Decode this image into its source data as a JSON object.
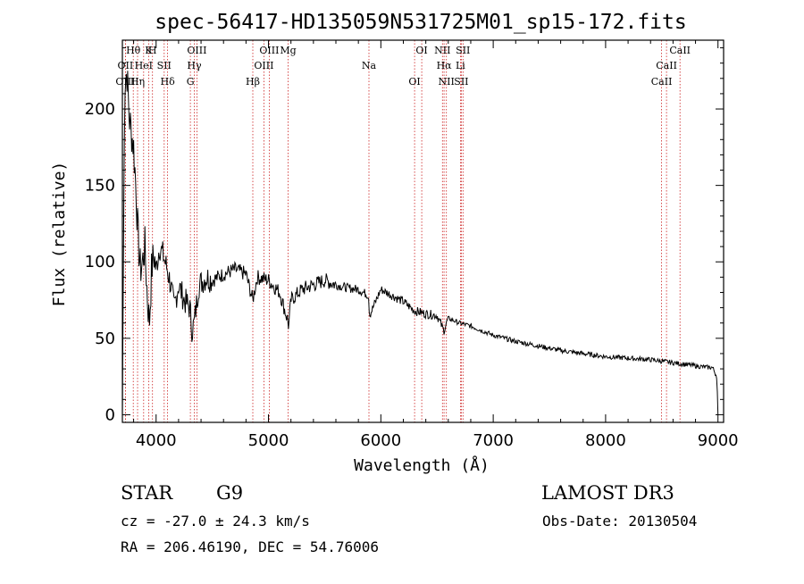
{
  "chart_data": {
    "type": "line",
    "title": "spec-56417-HD135059N531725M01_sp15-172.fits",
    "xlabel": "Wavelength (Å)",
    "ylabel": "Flux (relative)",
    "xlim": [
      3700,
      9050
    ],
    "ylim": [
      -5,
      245
    ],
    "xticks": [
      4000,
      5000,
      6000,
      7000,
      8000,
      9000
    ],
    "yticks": [
      0,
      50,
      100,
      150,
      200
    ],
    "series": [
      {
        "name": "flux",
        "x": [
          3700,
          3720,
          3740,
          3760,
          3780,
          3800,
          3820,
          3840,
          3860,
          3880,
          3900,
          3920,
          3940,
          3960,
          3980,
          4000,
          4030,
          4060,
          4100,
          4130,
          4160,
          4200,
          4250,
          4300,
          4320,
          4340,
          4380,
          4450,
          4500,
          4600,
          4700,
          4800,
          4860,
          4900,
          5000,
          5100,
          5170,
          5180,
          5200,
          5300,
          5400,
          5500,
          5600,
          5700,
          5800,
          5890,
          5900,
          6000,
          6100,
          6200,
          6300,
          6400,
          6500,
          6560,
          6600,
          6700,
          6800,
          7000,
          7200,
          7400,
          7600,
          7800,
          8000,
          8200,
          8400,
          8500,
          8600,
          8700,
          8800,
          8900,
          8950,
          8990,
          9000
        ],
        "values": [
          0,
          215,
          225,
          195,
          185,
          175,
          150,
          115,
          95,
          100,
          110,
          80,
          60,
          95,
          105,
          95,
          110,
          105,
          95,
          85,
          70,
          85,
          75,
          70,
          55,
          60,
          85,
          90,
          88,
          92,
          95,
          92,
          75,
          90,
          88,
          80,
          62,
          58,
          75,
          82,
          85,
          88,
          85,
          83,
          82,
          78,
          65,
          82,
          78,
          74,
          68,
          66,
          65,
          55,
          63,
          60,
          58,
          52,
          48,
          45,
          42,
          40,
          38,
          37,
          36,
          35,
          34,
          33,
          32,
          31,
          31,
          25,
          0
        ]
      }
    ],
    "spectral_lines": [
      {
        "label": "Hθ",
        "wavelength": 3797
      },
      {
        "label": "OII",
        "wavelength": 3727
      },
      {
        "label": "OIII",
        "wavelength": 3727
      },
      {
        "label": "K",
        "wavelength": 3934
      },
      {
        "label": "HeI",
        "wavelength": 3889
      },
      {
        "label": "Hη",
        "wavelength": 3835
      },
      {
        "label": "H",
        "wavelength": 3968
      },
      {
        "label": "SII",
        "wavelength": 4072
      },
      {
        "label": "Hδ",
        "wavelength": 4102
      },
      {
        "label": "OIII",
        "wavelength": 4363
      },
      {
        "label": "Hγ",
        "wavelength": 4340
      },
      {
        "label": "G",
        "wavelength": 4305
      },
      {
        "label": "OIII",
        "wavelength": 5007
      },
      {
        "label": "OIII",
        "wavelength": 4959
      },
      {
        "label": "Hβ",
        "wavelength": 4861
      },
      {
        "label": "Mg",
        "wavelength": 5175
      },
      {
        "label": "Na",
        "wavelength": 5894
      },
      {
        "label": "OI",
        "wavelength": 6300
      },
      {
        "label": "OI",
        "wavelength": 6364
      },
      {
        "label": "Hα",
        "wavelength": 6563
      },
      {
        "label": "SII",
        "wavelength": 6716
      },
      {
        "label": "NII",
        "wavelength": 6548
      },
      {
        "label": "Li",
        "wavelength": 6708
      },
      {
        "label": "NII",
        "wavelength": 6583
      },
      {
        "label": "SII",
        "wavelength": 6731
      },
      {
        "label": "CaII",
        "wavelength": 8542
      },
      {
        "label": "CaII",
        "wavelength": 8498
      },
      {
        "label": "CaII",
        "wavelength": 8662
      }
    ]
  },
  "info": {
    "class_label": "STAR",
    "subclass": "G9",
    "survey": "LAMOST DR3",
    "redshift": "cz = -27.0 ± 24.3 km/s",
    "obs_date": "Obs-Date: 20130504",
    "coords": "RA = 206.46190, DEC =  54.76006"
  },
  "colors": {
    "line_marker": "#cc2222",
    "spectrum": "#000000",
    "axes": "#000000"
  }
}
